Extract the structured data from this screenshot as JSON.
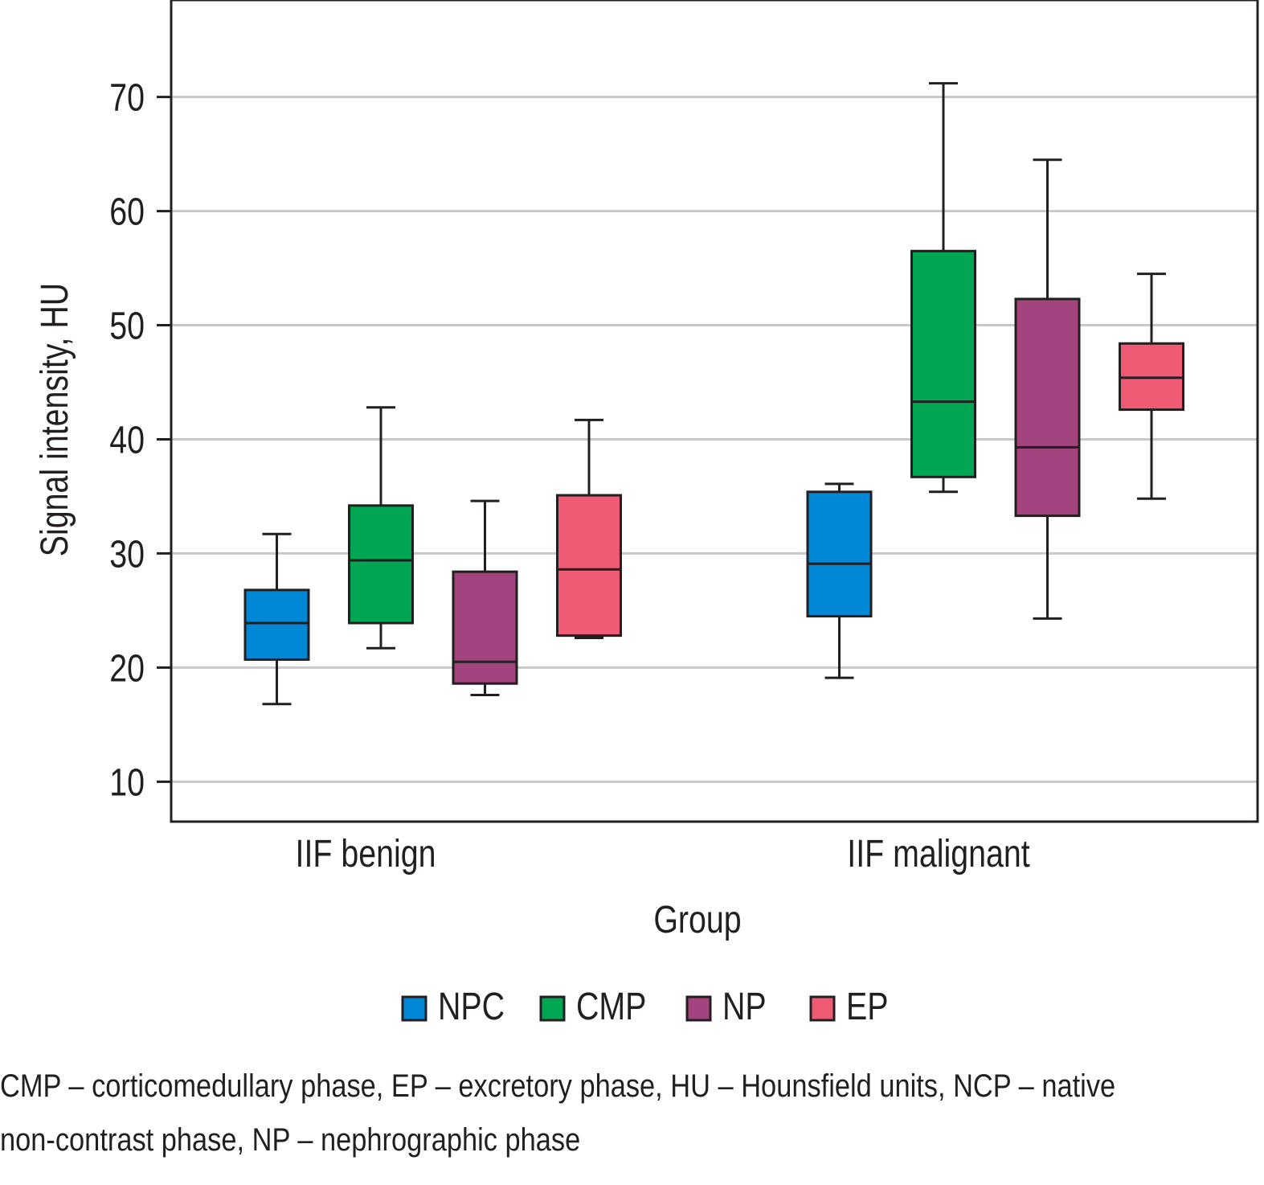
{
  "chart_data": {
    "type": "boxplot",
    "xlabel": "Group",
    "ylabel": "Signal intensity, HU",
    "ylim": [
      6.5,
      78.5
    ],
    "yticks": [
      10,
      20,
      30,
      40,
      50,
      60,
      70
    ],
    "grid": true,
    "legend_position": "bottom-center",
    "categories": [
      "IIF benign",
      "IIF malignant"
    ],
    "series": [
      {
        "name": "NPC",
        "color": "#0087d6",
        "boxes": [
          {
            "min": 16.8,
            "q1": 20.7,
            "median": 23.9,
            "q3": 26.8,
            "max": 31.7
          },
          {
            "min": 19.1,
            "q1": 24.5,
            "median": 29.1,
            "q3": 35.4,
            "max": 36.1
          }
        ]
      },
      {
        "name": "CMP",
        "color": "#00a651",
        "boxes": [
          {
            "min": 21.7,
            "q1": 23.9,
            "median": 29.4,
            "q3": 34.2,
            "max": 42.8
          },
          {
            "min": 35.4,
            "q1": 36.7,
            "median": 43.3,
            "q3": 56.5,
            "max": 71.2
          }
        ]
      },
      {
        "name": "NP",
        "color": "#a3447f",
        "boxes": [
          {
            "min": 17.6,
            "q1": 18.6,
            "median": 20.5,
            "q3": 28.4,
            "max": 34.6
          },
          {
            "min": 24.3,
            "q1": 33.3,
            "median": 39.3,
            "q3": 52.3,
            "max": 64.5
          }
        ]
      },
      {
        "name": "EP",
        "color": "#ef5b74",
        "boxes": [
          {
            "min": 22.6,
            "q1": 22.8,
            "median": 28.6,
            "q3": 35.1,
            "max": 41.7
          },
          {
            "min": 34.8,
            "q1": 42.6,
            "median": 45.4,
            "q3": 48.4,
            "max": 54.5
          }
        ]
      }
    ]
  },
  "caption": {
    "line1": "CMP – corticomedullary phase, EP – excretory phase, HU – Hounsfield units, NCP – native",
    "line2": "non-contrast phase, NP – nephrographic phase"
  },
  "colors": {
    "axis": "#231f20",
    "grid": "#c8c8c8",
    "outline": "#231f20"
  }
}
